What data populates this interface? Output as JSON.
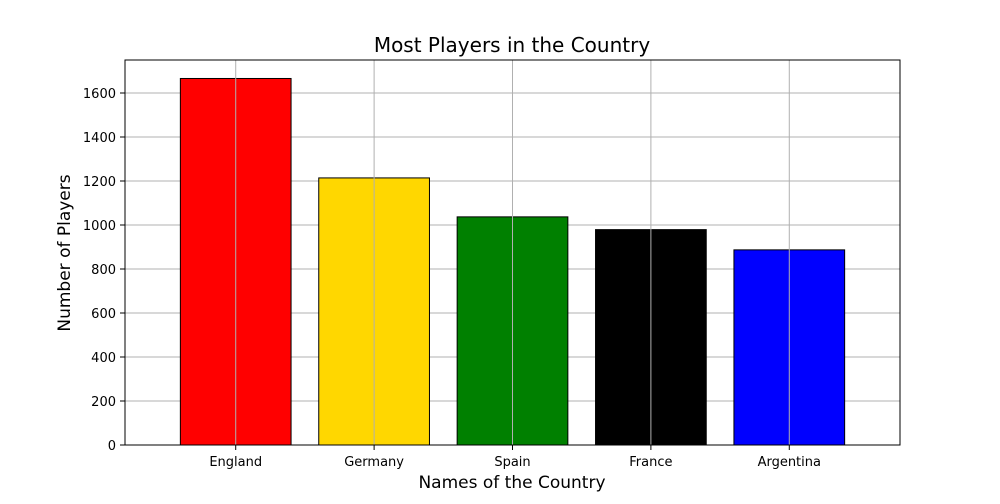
{
  "chart_data": {
    "type": "bar",
    "title": "Most Players in the Country",
    "xlabel": "Names of the Country",
    "ylabel": "Number of Players",
    "categories": [
      "England",
      "Germany",
      "Spain",
      "France",
      "Argentina"
    ],
    "values": [
      1666,
      1214,
      1037,
      979,
      887
    ],
    "colors": [
      "#ff0000",
      "#ffd700",
      "#008000",
      "#000000",
      "#0000ff"
    ],
    "edge_color": "#000000",
    "ylim": [
      0,
      1750
    ],
    "yticks": [
      0,
      200,
      400,
      600,
      800,
      1000,
      1200,
      1400,
      1600
    ],
    "ytick_labels": [
      "0",
      "200",
      "400",
      "600",
      "800",
      "1000",
      "1200",
      "1400",
      "1600"
    ],
    "grid": true,
    "legend": "none"
  }
}
